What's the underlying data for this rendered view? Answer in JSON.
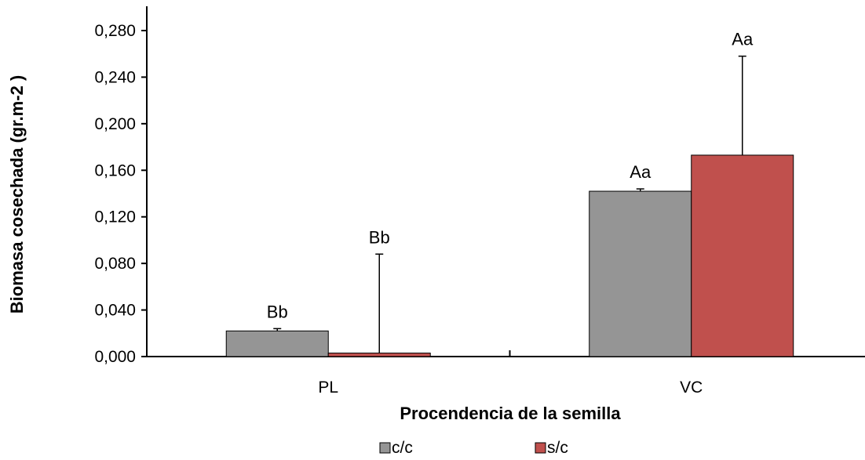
{
  "chart_data": {
    "type": "bar",
    "categories": [
      "PL",
      "VC"
    ],
    "series": [
      {
        "name": "c/c",
        "color": "#959595",
        "values": [
          0.022,
          0.142
        ],
        "errors": [
          0.002,
          0.002
        ],
        "labels": [
          "Bb",
          "Aa"
        ]
      },
      {
        "name": "s/c",
        "color": "#c0504d",
        "values": [
          0.003,
          0.173
        ],
        "errors": [
          0.085,
          0.085
        ],
        "labels": [
          "Bb",
          "Aa"
        ]
      }
    ],
    "xlabel": "Procendencia de la semilla",
    "ylabel": "Biomasa cosechada (gr.m-2 )",
    "ylim": [
      0,
      0.28
    ],
    "yticks": [
      "0,000",
      "0,040",
      "0,080",
      "0,120",
      "0,160",
      "0,200",
      "0,240",
      "0,280"
    ],
    "grid": false,
    "legend_position": "bottom"
  }
}
